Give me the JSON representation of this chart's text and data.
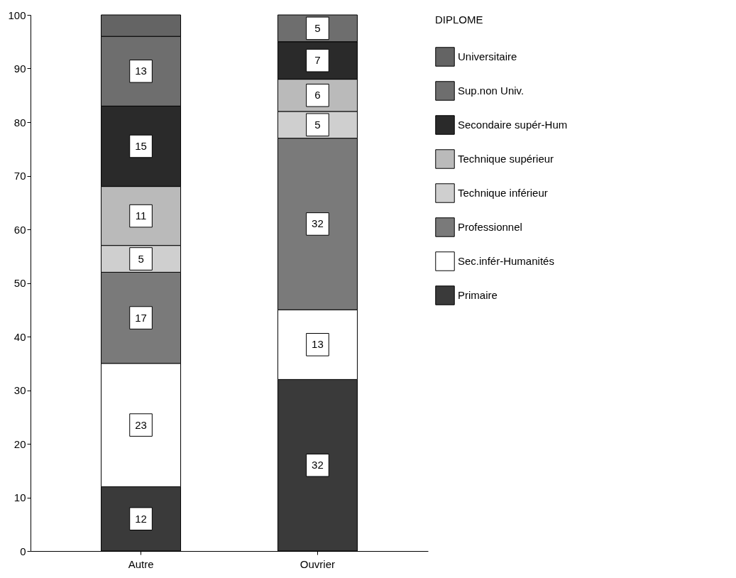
{
  "chart_data": {
    "type": "bar",
    "stacked": true,
    "categories": [
      "Autre",
      "Ouvrier"
    ],
    "ylim": [
      0,
      100
    ],
    "yticks": [
      0,
      10,
      20,
      30,
      40,
      50,
      60,
      70,
      80,
      90,
      100
    ],
    "grid": false,
    "legend": "right",
    "legend_title": "DIPLOME",
    "series": [
      {
        "name": "Primaire",
        "color": "#3a3a3a",
        "values": [
          12,
          32
        ],
        "value_labels": [
          "12",
          "32"
        ]
      },
      {
        "name": "Sec.infér-Humanités",
        "color": "#ffffff",
        "values": [
          23,
          13
        ],
        "value_labels": [
          "23",
          "13"
        ]
      },
      {
        "name": "Professionnel",
        "color": "#7a7a7a",
        "values": [
          17,
          32
        ],
        "value_labels": [
          "17",
          "32"
        ]
      },
      {
        "name": "Technique inférieur",
        "color": "#cfcfcf",
        "values": [
          5,
          5
        ],
        "value_labels": [
          "5",
          "5"
        ]
      },
      {
        "name": "Technique supérieur",
        "color": "#bababa",
        "values": [
          11,
          6
        ],
        "value_labels": [
          "11",
          "6"
        ]
      },
      {
        "name": "Secondaire supér-Hum",
        "color": "#2a2a2a",
        "values": [
          15,
          7
        ],
        "value_labels": [
          "15",
          "7"
        ]
      },
      {
        "name": "Sup.non Univ.",
        "color": "#6e6e6e",
        "values": [
          13,
          5
        ],
        "value_labels": [
          "13",
          "5"
        ]
      },
      {
        "name": "Universitaire",
        "color": "#646464",
        "values": [
          4,
          null
        ],
        "value_labels": [
          null,
          null
        ]
      }
    ]
  }
}
